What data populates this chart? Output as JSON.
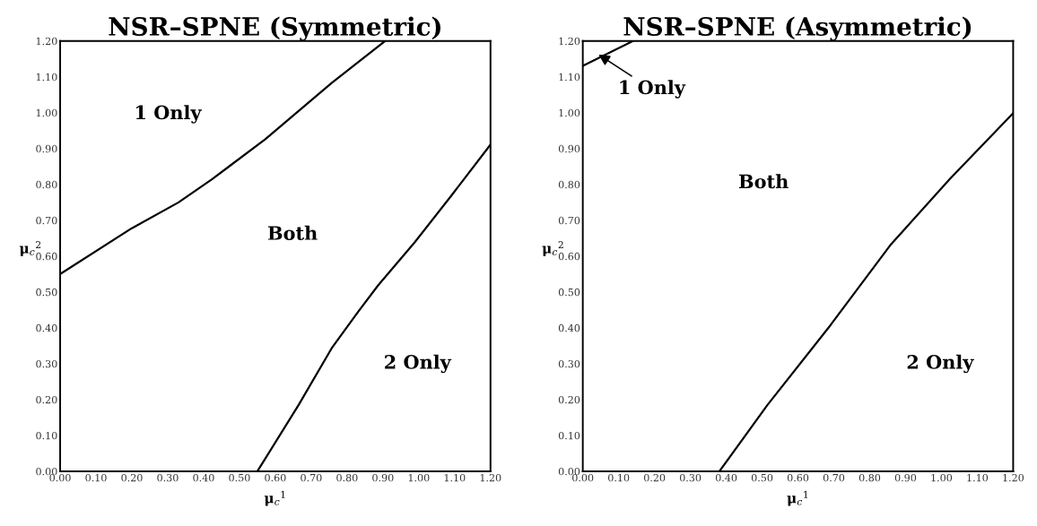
{
  "chart_data": [
    {
      "type": "line",
      "title": "NSR–SPNE (Symmetric)",
      "xlabel": "μ$_{c}$$^{1}$",
      "ylabel": "μ$_{c}$$^{2}$",
      "series": [
        {
          "color": "#000000",
          "x": [
            0,
            0.2,
            0.33,
            0.424,
            0.572,
            0.757,
            0.906
          ],
          "values": [
            0.55,
            0.678,
            0.75,
            0.815,
            0.926,
            1.083,
            1.2
          ]
        },
        {
          "color": "#000000",
          "x": [
            0.55,
            0.665,
            0.757,
            0.831,
            0.887,
            0.989,
            1.091,
            1.2
          ],
          "values": [
            0,
            0.185,
            0.343,
            0.445,
            0.519,
            0.639,
            0.769,
            0.911
          ]
        }
      ],
      "xlim": [
        0,
        1.2
      ],
      "ylim": [
        0,
        1.2
      ],
      "xticks": [
        {
          "value": 0,
          "label": "0.00"
        },
        {
          "value": 0.1,
          "label": "0.10"
        },
        {
          "value": 0.2,
          "label": "0.20"
        },
        {
          "value": 0.3,
          "label": "0.30"
        },
        {
          "value": 0.4,
          "label": "0.40"
        },
        {
          "value": 0.5,
          "label": "0.50"
        },
        {
          "value": 0.6,
          "label": "0.60"
        },
        {
          "value": 0.7,
          "label": "0.70"
        },
        {
          "value": 0.8,
          "label": "0.80"
        },
        {
          "value": 0.9,
          "label": "0.90"
        },
        {
          "value": 1,
          "label": "1.00"
        },
        {
          "value": 1.1,
          "label": "1.10"
        },
        {
          "value": 1.2,
          "label": "1.20"
        }
      ],
      "yticks": [
        {
          "value": 0,
          "label": "0.00"
        },
        {
          "value": 0.1,
          "label": "0.10"
        },
        {
          "value": 0.2,
          "label": "0.20"
        },
        {
          "value": 0.3,
          "label": "0.30"
        },
        {
          "value": 0.4,
          "label": "0.40"
        },
        {
          "value": 0.5,
          "label": "0.50"
        },
        {
          "value": 0.6,
          "label": "0.60"
        },
        {
          "value": 0.7,
          "label": "0.70"
        },
        {
          "value": 0.8,
          "label": "0.80"
        },
        {
          "value": 0.9,
          "label": "0.90"
        },
        {
          "value": 1,
          "label": "1.00"
        },
        {
          "value": 1.1,
          "label": "1.10"
        },
        {
          "value": 1.2,
          "label": "1.20"
        }
      ],
      "annotations": [
        "1 Only",
        "Both",
        "2 Only"
      ],
      "grid": false,
      "legend": false
    },
    {
      "type": "line",
      "title": "NSR–SPNE (Asymmetric)",
      "xlabel": "μ$_{c}$$^{1}$",
      "ylabel": "μ$_{c}$$^{2}$",
      "series": [
        {
          "color": "#000000",
          "x": [
            0,
            0.14
          ],
          "values": [
            1.131,
            1.2
          ]
        },
        {
          "color": "#000000",
          "x": [
            0.381,
            0.515,
            0.691,
            0.857,
            1.024,
            1.2
          ],
          "values": [
            0,
            0.185,
            0.408,
            0.63,
            0.816,
            0.999
          ]
        }
      ],
      "xlim": [
        0,
        1.2
      ],
      "ylim": [
        0,
        1.2
      ],
      "xticks": [
        {
          "value": 0,
          "label": "0.00"
        },
        {
          "value": 0.1,
          "label": "0.10"
        },
        {
          "value": 0.2,
          "label": "0.20"
        },
        {
          "value": 0.3,
          "label": "0.30"
        },
        {
          "value": 0.4,
          "label": "0.40"
        },
        {
          "value": 0.5,
          "label": "0.50"
        },
        {
          "value": 0.6,
          "label": "0.60"
        },
        {
          "value": 0.7,
          "label": "0.70"
        },
        {
          "value": 0.8,
          "label": "0.80"
        },
        {
          "value": 0.9,
          "label": "0.90"
        },
        {
          "value": 1,
          "label": "1.00"
        },
        {
          "value": 1.1,
          "label": "1.10"
        },
        {
          "value": 1.2,
          "label": "1.20"
        }
      ],
      "yticks": [
        {
          "value": 0,
          "label": "0.00"
        },
        {
          "value": 0.1,
          "label": "0.10"
        },
        {
          "value": 0.2,
          "label": "0.20"
        },
        {
          "value": 0.3,
          "label": "0.30"
        },
        {
          "value": 0.4,
          "label": "0.40"
        },
        {
          "value": 0.5,
          "label": "0.50"
        },
        {
          "value": 0.6,
          "label": "0.60"
        },
        {
          "value": 0.7,
          "label": "0.70"
        },
        {
          "value": 0.8,
          "label": "0.80"
        },
        {
          "value": 0.9,
          "label": "0.90"
        },
        {
          "value": 1,
          "label": "1.00"
        },
        {
          "value": 1.1,
          "label": "1.10"
        },
        {
          "value": 1.2,
          "label": "1.20"
        }
      ],
      "annotations": [
        {
          "text": "1 Only",
          "x": 0.038,
          "y": 1.166
        },
        "Both",
        "2 Only"
      ],
      "grid": false,
      "legend": false
    }
  ]
}
